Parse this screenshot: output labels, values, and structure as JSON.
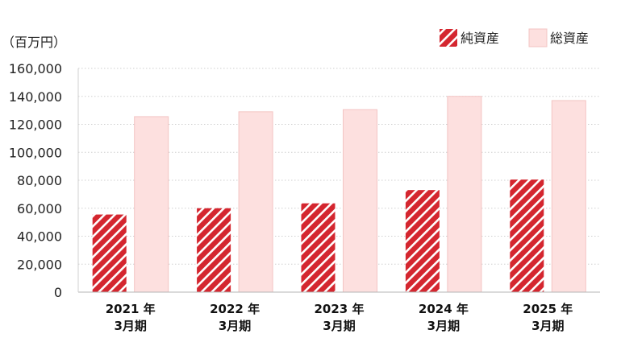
{
  "chart_data": {
    "type": "bar",
    "unit_label": "（百万円）",
    "categories": [
      [
        "2021 年",
        "3月期"
      ],
      [
        "2022 年",
        "3月期"
      ],
      [
        "2023 年",
        "3月期"
      ],
      [
        "2024 年",
        "3月期"
      ],
      [
        "2025 年",
        "3月期"
      ]
    ],
    "series": [
      {
        "name": "純資産",
        "values": [
          55500,
          60000,
          63500,
          73000,
          80500
        ],
        "color": "#d4262f",
        "pattern": "diagonal-hatch"
      },
      {
        "name": "総資産",
        "values": [
          125500,
          129000,
          130500,
          140000,
          137000
        ],
        "color": "#fde0df",
        "border": "#f3c4c3"
      }
    ],
    "ylim": [
      0,
      160000
    ],
    "y_ticks": [
      "0",
      "20,000",
      "40,000",
      "60,000",
      "80,000",
      "100,000",
      "120,000",
      "140,000",
      "160,000"
    ],
    "grid": "horizontal-dotted",
    "legend_position": "top-right"
  }
}
